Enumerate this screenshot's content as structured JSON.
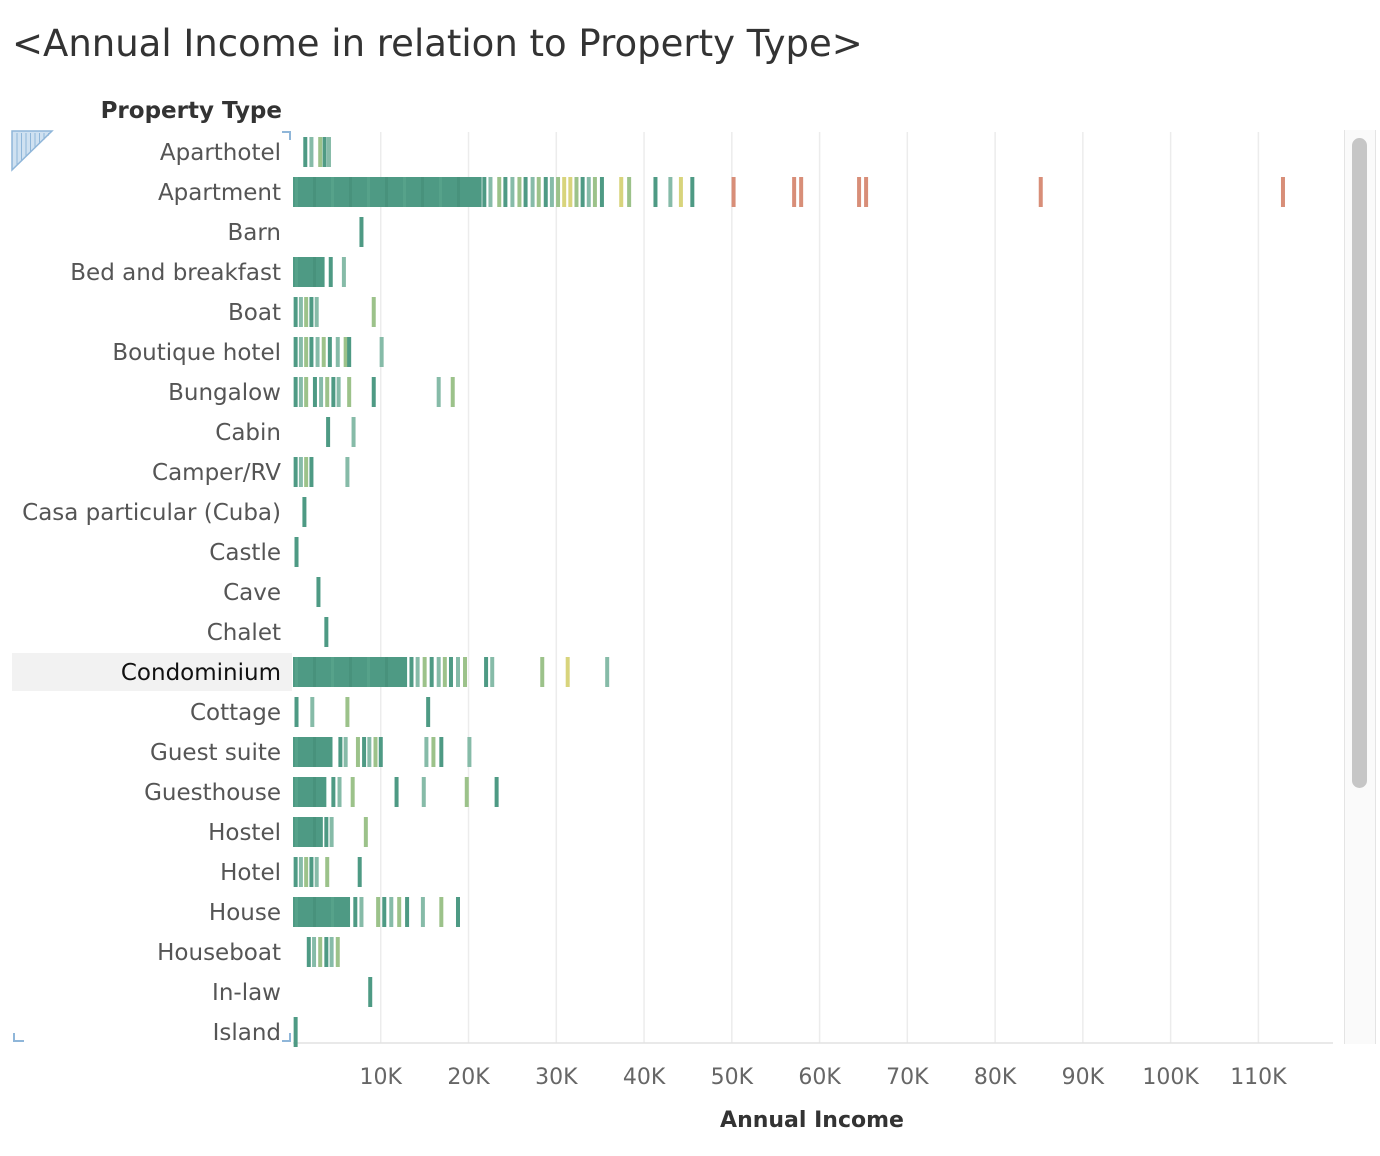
{
  "title": "<Annual Income in relation to Property Type>",
  "row_header": "Property Type",
  "colors": {
    "teal": "#4e9a84",
    "light_teal": "#86bba8",
    "pale_green": "#9cc28a",
    "yellow": "#d8d47c",
    "salmon": "#d88e78",
    "grid": "#ececec",
    "selection": "#f2f2f2"
  },
  "chart_data": {
    "type": "strip",
    "xlabel": "Annual Income",
    "ylabel": "Property Type",
    "xlim": [
      0,
      118500
    ],
    "x_ticks": [
      10000,
      20000,
      30000,
      40000,
      50000,
      60000,
      70000,
      80000,
      90000,
      100000,
      110000
    ],
    "x_tick_labels": [
      "10K",
      "20K",
      "30K",
      "40K",
      "50K",
      "60K",
      "70K",
      "80K",
      "90K",
      "100K",
      "110K"
    ],
    "grid": "vertical",
    "selected_category": "Condominium",
    "categories": [
      {
        "name": "Aparthotel",
        "dense": [],
        "values": [
          1400,
          2100,
          3100,
          3600,
          4100
        ]
      },
      {
        "name": "Apartment",
        "dense": [
          0,
          21500
        ],
        "values": [
          21800,
          22500,
          23500,
          24200,
          25000,
          25800,
          26500,
          27300,
          28000,
          28800,
          29500,
          30200,
          30900,
          31600,
          32300,
          33000,
          33700,
          34400,
          35200,
          37400,
          38300,
          41300,
          43000,
          44200,
          45500,
          50200,
          57100,
          57900,
          64500,
          65300,
          85200,
          112800
        ]
      },
      {
        "name": "Barn",
        "dense": [],
        "values": [
          7800
        ]
      },
      {
        "name": "Bed and breakfast",
        "dense": [
          0,
          3600
        ],
        "values": [
          4300,
          5800
        ]
      },
      {
        "name": "Boat",
        "dense": [],
        "values": [
          300,
          900,
          1500,
          2100,
          2700,
          9200
        ]
      },
      {
        "name": "Boutique hotel",
        "dense": [],
        "values": [
          300,
          900,
          1500,
          2100,
          2800,
          3500,
          4200,
          5100,
          6000,
          6400,
          10100
        ]
      },
      {
        "name": "Bungalow",
        "dense": [],
        "values": [
          300,
          900,
          1500,
          2500,
          3200,
          3900,
          4600,
          5200,
          6400,
          9200,
          16600,
          18200
        ]
      },
      {
        "name": "Cabin",
        "dense": [],
        "values": [
          4000,
          6900
        ]
      },
      {
        "name": "Camper/RV",
        "dense": [],
        "values": [
          300,
          900,
          1500,
          2100,
          6200
        ]
      },
      {
        "name": "Casa particular (Cuba)",
        "dense": [],
        "values": [
          1300
        ]
      },
      {
        "name": "Castle",
        "dense": [],
        "values": [
          400
        ]
      },
      {
        "name": "Cave",
        "dense": [],
        "values": [
          2900
        ]
      },
      {
        "name": "Chalet",
        "dense": [],
        "values": [
          3800
        ]
      },
      {
        "name": "Condominium",
        "dense": [
          0,
          13000
        ],
        "values": [
          13500,
          14200,
          15000,
          15800,
          16600,
          17300,
          18000,
          18800,
          19600,
          22000,
          22700,
          28400,
          31300,
          35800
        ]
      },
      {
        "name": "Cottage",
        "dense": [],
        "values": [
          400,
          2200,
          6200,
          15400
        ]
      },
      {
        "name": "Guest suite",
        "dense": [
          0,
          4500
        ],
        "values": [
          5400,
          6000,
          7400,
          8100,
          8700,
          9400,
          10000,
          15200,
          16000,
          16900,
          20100
        ]
      },
      {
        "name": "Guesthouse",
        "dense": [
          0,
          3800
        ],
        "values": [
          4600,
          5300,
          6800,
          11800,
          14900,
          19800,
          23200
        ]
      },
      {
        "name": "Hostel",
        "dense": [
          0,
          3400
        ],
        "values": [
          3800,
          4400,
          8300
        ]
      },
      {
        "name": "Hotel",
        "dense": [],
        "values": [
          300,
          900,
          1500,
          2100,
          2700,
          3900,
          7600
        ]
      },
      {
        "name": "House",
        "dense": [
          0,
          6500
        ],
        "values": [
          7100,
          7800,
          9700,
          10400,
          11200,
          12100,
          13000,
          14800,
          16900,
          18800
        ]
      },
      {
        "name": "Houseboat",
        "dense": [],
        "values": [
          1800,
          2400,
          3100,
          3800,
          4400,
          5100
        ]
      },
      {
        "name": "In-law",
        "dense": [],
        "values": [
          8800
        ]
      },
      {
        "name": "Island",
        "dense": [],
        "values": [
          300
        ]
      }
    ]
  }
}
